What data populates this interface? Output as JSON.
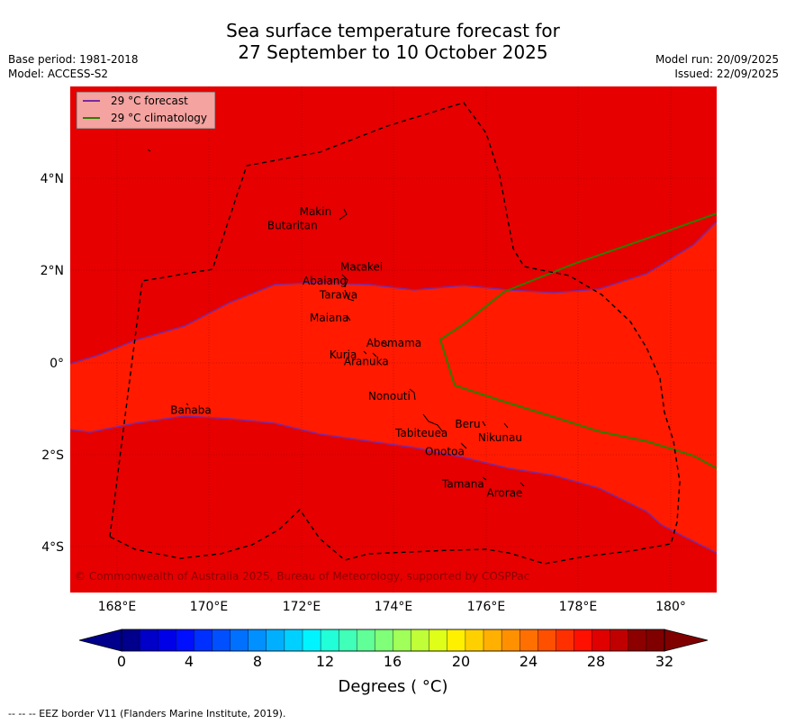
{
  "header": {
    "title_line1": "Sea surface temperature forecast for",
    "title_line2": "27 September to 10 October 2025",
    "base_period": "Base period: 1981-2018",
    "model": "Model: ACCESS-S2",
    "model_run": "Model run: 20/09/2025",
    "issued": "Issued: 22/09/2025"
  },
  "legend": {
    "forecast_label": "29 °C  forecast",
    "climatology_label": "29 °C  climatology",
    "forecast_color": "#7a2aa0",
    "climatology_color": "#2e7d00"
  },
  "axes": {
    "x_ticks": [
      "168°E",
      "170°E",
      "172°E",
      "174°E",
      "176°E",
      "178°E",
      "180°"
    ],
    "y_ticks": [
      "4°N",
      "2°N",
      "0°",
      "2°S",
      "4°S"
    ],
    "lon_range": [
      167,
      181
    ],
    "lat_range": [
      -5,
      6
    ]
  },
  "places": [
    {
      "name": "Makin",
      "lon": 172.3,
      "lat": 3.2
    },
    {
      "name": "Butaritan",
      "lon": 171.8,
      "lat": 2.9
    },
    {
      "name": "Marakei",
      "lon": 173.3,
      "lat": 2.0
    },
    {
      "name": "Abaiang",
      "lon": 172.5,
      "lat": 1.7
    },
    {
      "name": "Tarawa",
      "lon": 172.8,
      "lat": 1.4
    },
    {
      "name": "Maiana",
      "lon": 172.6,
      "lat": 0.9
    },
    {
      "name": "Abemama",
      "lon": 174.0,
      "lat": 0.35
    },
    {
      "name": "Kuria",
      "lon": 172.9,
      "lat": 0.1
    },
    {
      "name": "Aranuka",
      "lon": 173.4,
      "lat": -0.05
    },
    {
      "name": "Nonouti",
      "lon": 173.9,
      "lat": -0.8
    },
    {
      "name": "Banaba",
      "lon": 169.6,
      "lat": -1.1
    },
    {
      "name": "Beru",
      "lon": 175.6,
      "lat": -1.4
    },
    {
      "name": "Tabiteuea",
      "lon": 174.6,
      "lat": -1.6
    },
    {
      "name": "Nikunau",
      "lon": 176.3,
      "lat": -1.7
    },
    {
      "name": "Onotoa",
      "lon": 175.1,
      "lat": -2.0
    },
    {
      "name": "Tamana",
      "lon": 175.5,
      "lat": -2.7
    },
    {
      "name": "Arorae",
      "lon": 176.4,
      "lat": -2.9
    }
  ],
  "copyright": "© Commonwealth of Australia 2025, Bureau of Meteorology, supported by COSPPac",
  "colorbar": {
    "ticks": [
      "0",
      "4",
      "8",
      "12",
      "16",
      "20",
      "24",
      "28",
      "32"
    ],
    "label": "Degrees ( °C)",
    "colors": [
      "#00008c",
      "#0000c8",
      "#0000e8",
      "#0010ff",
      "#0030ff",
      "#0050ff",
      "#0070ff",
      "#0090ff",
      "#00b0ff",
      "#00d0ff",
      "#00f4ff",
      "#20ffd8",
      "#40ffb8",
      "#60ff98",
      "#80ff78",
      "#a0ff58",
      "#c0ff38",
      "#e0ff18",
      "#fff000",
      "#ffd000",
      "#ffb000",
      "#ff9000",
      "#ff7000",
      "#ff5000",
      "#ff3000",
      "#ff1000",
      "#e00000",
      "#c00000",
      "#8c0000",
      "#800000"
    ]
  },
  "zones": {
    "north_color": "#e60000",
    "middle_color": "#ff1a00",
    "south_color": "#e60000"
  },
  "footer": "--  --  -- EEZ border V11 (Flanders Marine Institute, 2019)."
}
